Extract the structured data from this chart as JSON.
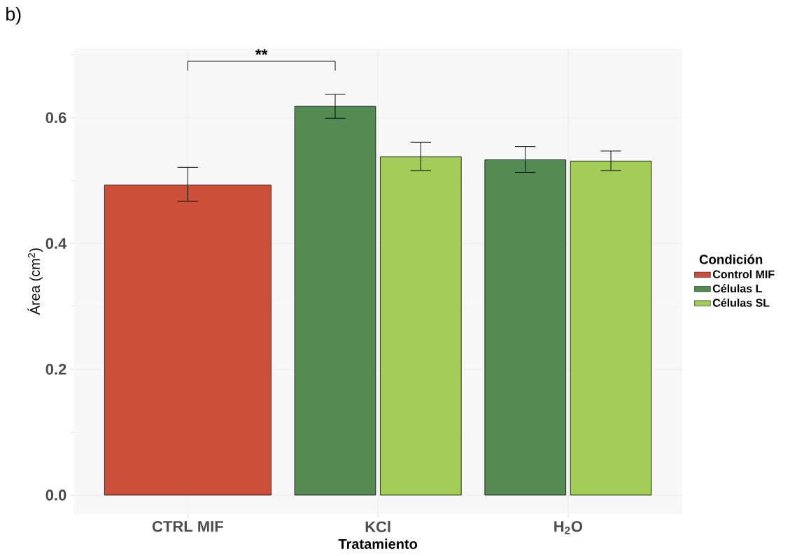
{
  "chart_data": {
    "type": "bar",
    "title": "b)",
    "xlabel": "Tratamiento",
    "ylabel": "Área (cm$^{2}$)",
    "legend_title": "Condición",
    "categories": [
      "CTRL MIF",
      "KCl",
      "H$_{2}$O"
    ],
    "series": [
      {
        "name": "Control MIF",
        "color": "#cc4f3a",
        "values": [
          0.493,
          null,
          null
        ],
        "errors": [
          [
            0.467,
            0.521
          ],
          null,
          null
        ]
      },
      {
        "name": "Células L",
        "color": "#548b55",
        "values": [
          null,
          0.618,
          0.533
        ],
        "errors": [
          null,
          [
            0.599,
            0.637
          ],
          [
            0.513,
            0.554
          ]
        ]
      },
      {
        "name": "Células SL",
        "color": "#a3cc5a",
        "values": [
          null,
          0.538,
          0.531
        ],
        "errors": [
          null,
          [
            0.516,
            0.561
          ],
          [
            0.516,
            0.547
          ]
        ]
      }
    ],
    "ylim": [
      -0.03,
      0.71
    ],
    "yticks": [
      {
        "value": 0,
        "label": "0.0"
      },
      {
        "value": 0.2,
        "label": "0.2"
      },
      {
        "value": 0.4,
        "label": "0.4"
      },
      {
        "value": 0.6,
        "label": "0.6"
      }
    ],
    "grid": true,
    "legend": "right",
    "annotations": [
      "**"
    ]
  }
}
